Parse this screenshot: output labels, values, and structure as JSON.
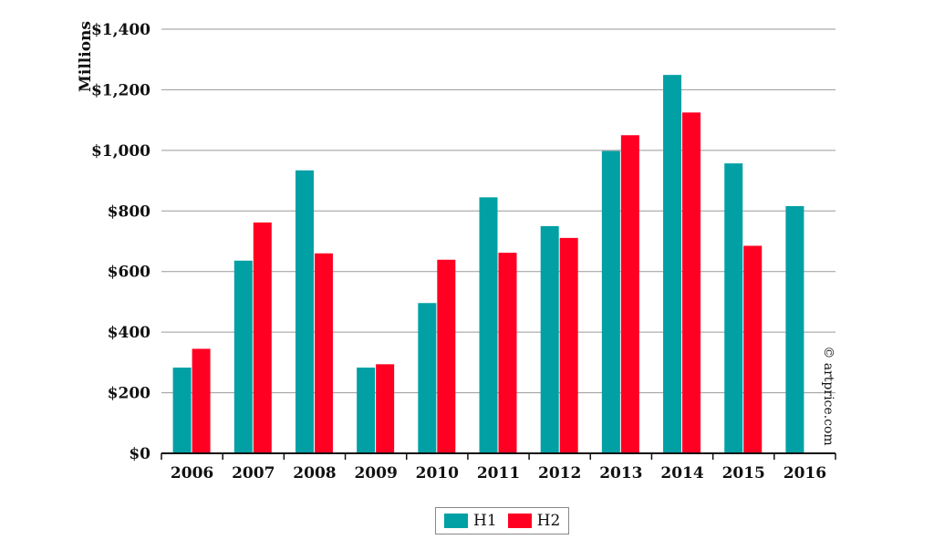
{
  "chart_data": {
    "type": "bar",
    "ylabel": "Millions",
    "xlabel": "",
    "categories": [
      "2006",
      "2007",
      "2008",
      "2009",
      "2010",
      "2011",
      "2012",
      "2013",
      "2014",
      "2015",
      "2016"
    ],
    "series": [
      {
        "name": "H1",
        "color": "#00A0A5",
        "values": [
          283,
          636,
          934,
          283,
          496,
          845,
          750,
          998,
          1249,
          957,
          816
        ]
      },
      {
        "name": "H2",
        "color": "#FF0022",
        "values": [
          345,
          762,
          660,
          294,
          639,
          662,
          711,
          1050,
          1125,
          685,
          null
        ]
      }
    ],
    "ylim": [
      0,
      1400
    ],
    "yticks": [
      0,
      200,
      400,
      600,
      800,
      1000,
      1200,
      1400
    ],
    "ytick_labels": [
      "$0",
      "$200",
      "$400",
      "$600",
      "$800",
      "$1,000",
      "$1,200",
      "$1,400"
    ],
    "grid": true,
    "legend_position": "bottom-center"
  },
  "watermark": "© artprice.com"
}
